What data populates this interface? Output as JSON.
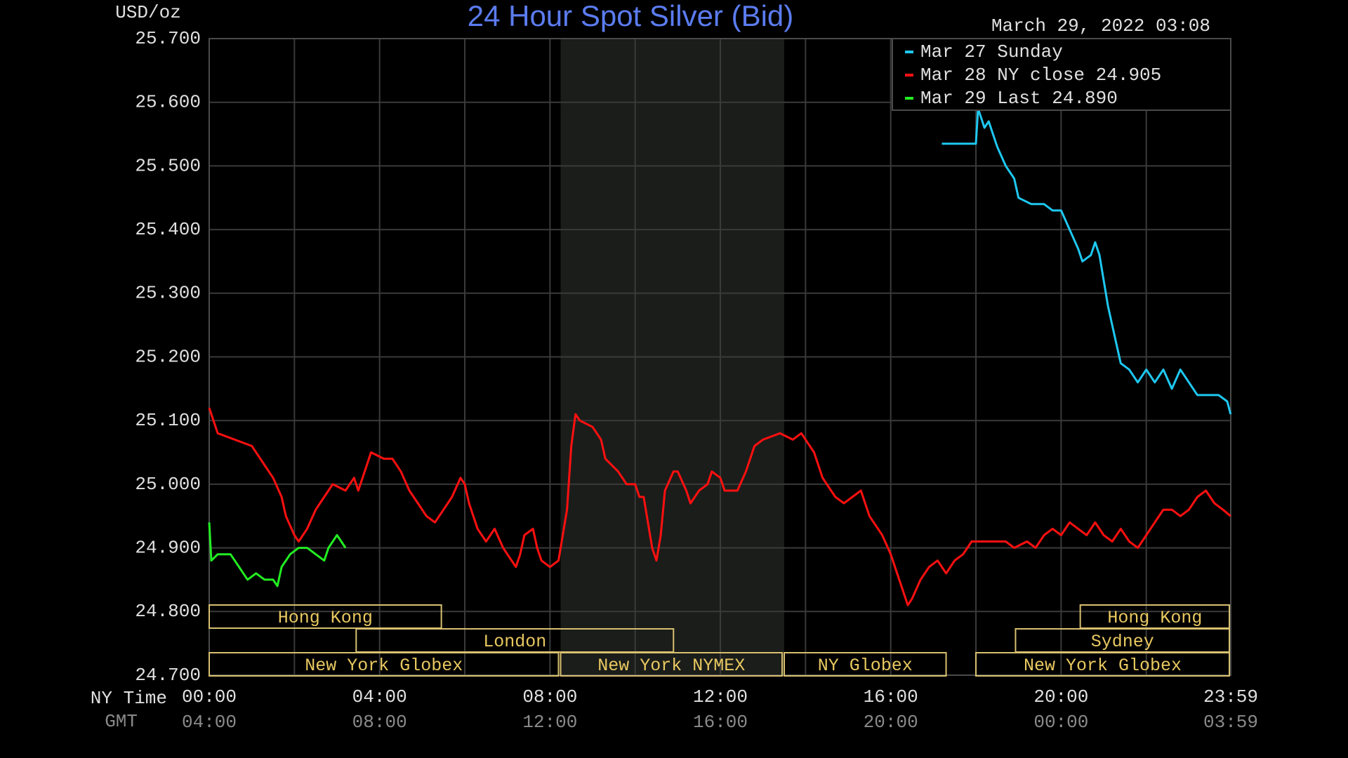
{
  "chart_data": {
    "type": "line",
    "title": "24 Hour Spot Silver (Bid)",
    "ylabel": "USD/oz",
    "timestamp": "March 29, 2022 03:08",
    "xlabel": "NY Time",
    "x2label": "GMT",
    "xlim": [
      0,
      23.983
    ],
    "xticks": [
      {
        "value": 0,
        "label": "00:00"
      },
      {
        "value": 4,
        "label": "04:00"
      },
      {
        "value": 8,
        "label": "08:00"
      },
      {
        "value": 12,
        "label": "12:00"
      },
      {
        "value": 16,
        "label": "16:00"
      },
      {
        "value": 20,
        "label": "20:00"
      },
      {
        "value": 23.983,
        "label": "23:59"
      }
    ],
    "gmt_labels": [
      "04:00",
      "08:00",
      "12:00",
      "16:00",
      "20:00",
      "00:00",
      "03:59"
    ],
    "xgrid": [
      2,
      6,
      10,
      14,
      18,
      22
    ],
    "ylim": [
      24.7,
      25.7
    ],
    "yticks": [
      {
        "value": 25.7,
        "label": "25.700"
      },
      {
        "value": 25.6,
        "label": "25.600"
      },
      {
        "value": 25.5,
        "label": "25.500"
      },
      {
        "value": 25.4,
        "label": "25.400"
      },
      {
        "value": 25.3,
        "label": "25.300"
      },
      {
        "value": 25.2,
        "label": "25.200"
      },
      {
        "value": 25.1,
        "label": "25.100"
      },
      {
        "value": 25.0,
        "label": "25.000"
      },
      {
        "value": 24.9,
        "label": "24.900"
      },
      {
        "value": 24.8,
        "label": "24.800"
      },
      {
        "value": 24.7,
        "label": "24.700"
      }
    ],
    "grid": true,
    "legend": "top-right",
    "shaded_xrange": [
      8.25,
      13.5
    ],
    "sessions": [
      {
        "name": "Hong Kong",
        "row": 0,
        "start": 0,
        "end": 5.45
      },
      {
        "name": "Hong Kong",
        "row": 0,
        "start": 20.45,
        "end": 23.95
      },
      {
        "name": "London",
        "row": 1,
        "start": 3.45,
        "end": 10.9
      },
      {
        "name": "Sydney",
        "row": 1,
        "start": 18.93,
        "end": 23.95
      },
      {
        "name": "New York Globex",
        "row": 2,
        "start": 0,
        "end": 8.2
      },
      {
        "name": "New York NYMEX",
        "row": 2,
        "start": 8.25,
        "end": 13.45
      },
      {
        "name": "NY Globex",
        "row": 2,
        "start": 13.5,
        "end": 17.3
      },
      {
        "name": "New York Globex",
        "row": 2,
        "start": 18.0,
        "end": 23.95
      }
    ],
    "series": [
      {
        "name": "Mar 27 Sunday",
        "color": "#1ec8f0",
        "x": [
          17.2,
          18.0,
          18.05,
          18.2,
          18.3,
          18.5,
          18.7,
          18.9,
          19.0,
          19.3,
          19.6,
          19.8,
          20.0,
          20.2,
          20.4,
          20.5,
          20.7,
          20.8,
          20.9,
          21.1,
          21.3,
          21.4,
          21.6,
          21.8,
          22.0,
          22.2,
          22.4,
          22.6,
          22.8,
          23.0,
          23.2,
          23.5,
          23.7,
          23.9,
          23.98
        ],
        "values": [
          25.535,
          25.535,
          25.59,
          25.56,
          25.57,
          25.53,
          25.5,
          25.48,
          25.45,
          25.44,
          25.44,
          25.43,
          25.43,
          25.4,
          25.37,
          25.35,
          25.36,
          25.38,
          25.36,
          25.28,
          25.22,
          25.19,
          25.18,
          25.16,
          25.18,
          25.16,
          25.18,
          25.15,
          25.18,
          25.16,
          25.14,
          25.14,
          25.14,
          25.13,
          25.11
        ]
      },
      {
        "name": "Mar 28 NY close 24.905",
        "color": "#ff1010",
        "x": [
          0,
          0.2,
          0.6,
          1,
          1.2,
          1.4,
          1.5,
          1.7,
          1.8,
          2,
          2.1,
          2.3,
          2.5,
          2.7,
          2.9,
          3.2,
          3.4,
          3.5,
          3.7,
          3.8,
          4.1,
          4.3,
          4.5,
          4.7,
          4.9,
          5.1,
          5.3,
          5.5,
          5.7,
          5.9,
          6.0,
          6.1,
          6.3,
          6.5,
          6.7,
          6.9,
          7.1,
          7.2,
          7.3,
          7.4,
          7.6,
          7.7,
          7.8,
          8.0,
          8.2,
          8.4,
          8.5,
          8.6,
          8.7,
          9.0,
          9.2,
          9.3,
          9.6,
          9.8,
          10.0,
          10.1,
          10.2,
          10.4,
          10.5,
          10.6,
          10.7,
          10.9,
          11.0,
          11.2,
          11.3,
          11.5,
          11.7,
          11.8,
          12.0,
          12.1,
          12.4,
          12.6,
          12.8,
          13.0,
          13.4,
          13.7,
          13.9,
          14.2,
          14.4,
          14.7,
          14.9,
          15.1,
          15.3,
          15.5,
          15.8,
          16.0,
          16.2,
          16.4,
          16.5,
          16.7,
          16.9,
          17.1,
          17.3,
          17.5,
          17.7,
          17.9,
          18.3,
          18.7,
          18.9,
          19.2,
          19.4,
          19.6,
          19.8,
          20.0,
          20.2,
          20.4,
          20.6,
          20.8,
          21.0,
          21.2,
          21.4,
          21.6,
          21.8,
          22.0,
          22.2,
          22.4,
          22.6,
          22.8,
          23.0,
          23.2,
          23.4,
          23.6,
          23.8,
          23.98
        ],
        "values": [
          25.12,
          25.08,
          25.07,
          25.06,
          25.04,
          25.02,
          25.01,
          24.98,
          24.95,
          24.92,
          24.91,
          24.93,
          24.96,
          24.98,
          25.0,
          24.99,
          25.01,
          24.99,
          25.03,
          25.05,
          25.04,
          25.04,
          25.02,
          24.99,
          24.97,
          24.95,
          24.94,
          24.96,
          24.98,
          25.01,
          25.0,
          24.97,
          24.93,
          24.91,
          24.93,
          24.9,
          24.88,
          24.87,
          24.89,
          24.92,
          24.93,
          24.9,
          24.88,
          24.87,
          24.88,
          24.96,
          25.06,
          25.11,
          25.1,
          25.09,
          25.07,
          25.04,
          25.02,
          25.0,
          25.0,
          24.98,
          24.98,
          24.9,
          24.88,
          24.92,
          24.99,
          25.02,
          25.02,
          24.99,
          24.97,
          24.99,
          25.0,
          25.02,
          25.01,
          24.99,
          24.99,
          25.02,
          25.06,
          25.07,
          25.08,
          25.07,
          25.08,
          25.05,
          25.01,
          24.98,
          24.97,
          24.98,
          24.99,
          24.95,
          24.92,
          24.89,
          24.85,
          24.81,
          24.82,
          24.85,
          24.87,
          24.88,
          24.86,
          24.88,
          24.89,
          24.91,
          24.91,
          24.91,
          24.9,
          24.91,
          24.9,
          24.92,
          24.93,
          24.92,
          24.94,
          24.93,
          24.92,
          24.94,
          24.92,
          24.91,
          24.93,
          24.91,
          24.9,
          24.92,
          24.94,
          24.96,
          24.96,
          24.95,
          24.96,
          24.98,
          24.99,
          24.97,
          24.96,
          24.95
        ]
      },
      {
        "name": "Mar 29 Last 24.890",
        "color": "#22ee22",
        "x": [
          0,
          0.05,
          0.2,
          0.5,
          0.7,
          0.9,
          1.1,
          1.3,
          1.5,
          1.6,
          1.7,
          1.9,
          2.1,
          2.3,
          2.5,
          2.7,
          2.8,
          3.0,
          3.1,
          3.2
        ],
        "values": [
          24.94,
          24.88,
          24.89,
          24.89,
          24.87,
          24.85,
          24.86,
          24.85,
          24.85,
          24.84,
          24.87,
          24.89,
          24.9,
          24.9,
          24.89,
          24.88,
          24.9,
          24.92,
          24.91,
          24.9
        ]
      }
    ]
  }
}
